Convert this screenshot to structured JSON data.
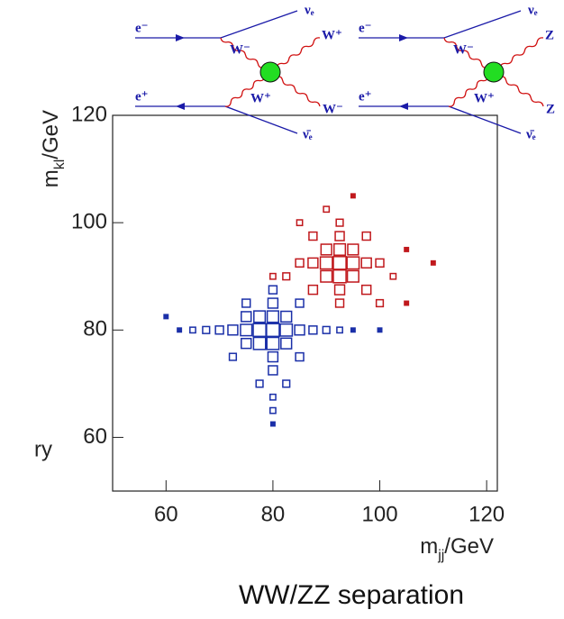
{
  "chart_data": {
    "type": "box2d",
    "title": "WW/ZZ separation",
    "side_text": "ry",
    "xlabel": {
      "base": "m",
      "sub": "jj",
      "unit": "/GeV"
    },
    "ylabel": {
      "base": "m",
      "sub": "kl",
      "unit": "/GeV"
    },
    "xlim": [
      50,
      122
    ],
    "ylim": [
      50,
      120
    ],
    "xticks": [
      60,
      80,
      100,
      120
    ],
    "yticks": [
      60,
      80,
      100,
      120
    ],
    "cell": 2.5,
    "series": [
      {
        "color": "#1a2fa8",
        "x": [
          75,
          77.5,
          80,
          82.5,
          77.5,
          80,
          80,
          77.5,
          75,
          82.5,
          75,
          82.5,
          72.5,
          85,
          80,
          80,
          70,
          87.5,
          80,
          80,
          67.5,
          90,
          65,
          92.5,
          77.5,
          82.5,
          80,
          75,
          85,
          72.5,
          85,
          62.5,
          95,
          80,
          80,
          60,
          100
        ],
        "y": [
          80,
          80,
          80,
          80,
          77.5,
          77.5,
          82.5,
          82.5,
          77.5,
          77.5,
          82.5,
          82.5,
          80,
          80,
          75,
          85,
          80,
          80,
          72.5,
          87.5,
          80,
          80,
          80,
          80,
          70,
          70,
          67.5,
          85,
          75,
          75,
          85,
          80,
          80,
          65,
          62.5,
          82.5,
          80
        ],
        "values": [
          8,
          10,
          10,
          9,
          9,
          9,
          8,
          8,
          6,
          7,
          6,
          7,
          6,
          6,
          6,
          6,
          4,
          4,
          5,
          4,
          3,
          3,
          2,
          2,
          3,
          3,
          2,
          4,
          4,
          3,
          4,
          1,
          1,
          2,
          1,
          1,
          1
        ]
      },
      {
        "color": "#c0181c",
        "x": [
          90,
          92.5,
          95,
          92.5,
          92.5,
          90,
          95,
          90,
          95,
          87.5,
          97.5,
          92.5,
          92.5,
          85,
          100,
          92.5,
          92.5,
          87.5,
          97.5,
          97.5,
          87.5,
          102.5,
          82.5,
          90,
          95,
          105,
          110,
          85,
          100,
          80,
          105
        ],
        "y": [
          92.5,
          92.5,
          92.5,
          90,
          95,
          90,
          90,
          95,
          95,
          92.5,
          92.5,
          87.5,
          97.5,
          92.5,
          92.5,
          85,
          100,
          87.5,
          97.5,
          87.5,
          97.5,
          90,
          90,
          102.5,
          105,
          95,
          92.5,
          100,
          85,
          90,
          85
        ],
        "values": [
          9,
          10,
          9,
          10,
          8,
          8,
          8,
          7,
          7,
          6,
          6,
          6,
          5,
          4,
          4,
          4,
          3,
          5,
          4,
          5,
          4,
          2,
          3,
          2,
          1,
          1,
          1,
          2,
          3,
          2,
          1
        ]
      }
    ]
  },
  "diagrams": [
    {
      "labels": {
        "e_minus": "e⁻",
        "e_plus": "e⁺",
        "nu": "νₑ",
        "nubar": "ν̄ₑ",
        "w_in_top": "W⁻",
        "w_in_bottom": "W⁺",
        "out_top": "W⁺",
        "out_bottom": "W⁻"
      }
    },
    {
      "labels": {
        "e_minus": "e⁻",
        "e_plus": "e⁺",
        "nu": "νₑ",
        "nubar": "ν̄ₑ",
        "w_in_top": "W⁻",
        "w_in_bottom": "W⁺",
        "out_top": "Z",
        "out_bottom": "Z"
      }
    }
  ]
}
